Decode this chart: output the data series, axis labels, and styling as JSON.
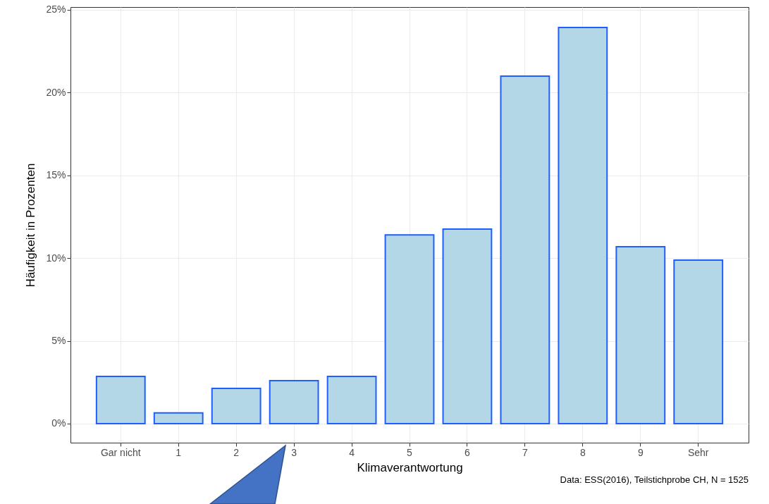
{
  "chart_data": {
    "type": "bar",
    "xlabel": "Klimaverantwortung",
    "ylabel": "Häufigkeit in Prozenten",
    "categories": [
      "Gar nicht",
      "1",
      "2",
      "3",
      "4",
      "5",
      "6",
      "7",
      "8",
      "9",
      "Sehr"
    ],
    "values": [
      2.85,
      0.65,
      2.13,
      2.6,
      2.85,
      11.4,
      11.75,
      21.0,
      23.93,
      10.69,
      9.88
    ],
    "color": "#b3d7e6",
    "ylim": [
      -1.15,
      25.17
    ],
    "yticks": [
      {
        "value": 0,
        "label": "0%"
      },
      {
        "value": 5,
        "label": "5%"
      },
      {
        "value": 10,
        "label": "10%"
      },
      {
        "value": 15,
        "label": "15%"
      },
      {
        "value": 20,
        "label": "20%"
      },
      {
        "value": 25,
        "label": "25%"
      }
    ],
    "grid": true,
    "annotations": [
      "Data: ESS(2016), Teilstichprobe CH, N = 1525"
    ]
  }
}
